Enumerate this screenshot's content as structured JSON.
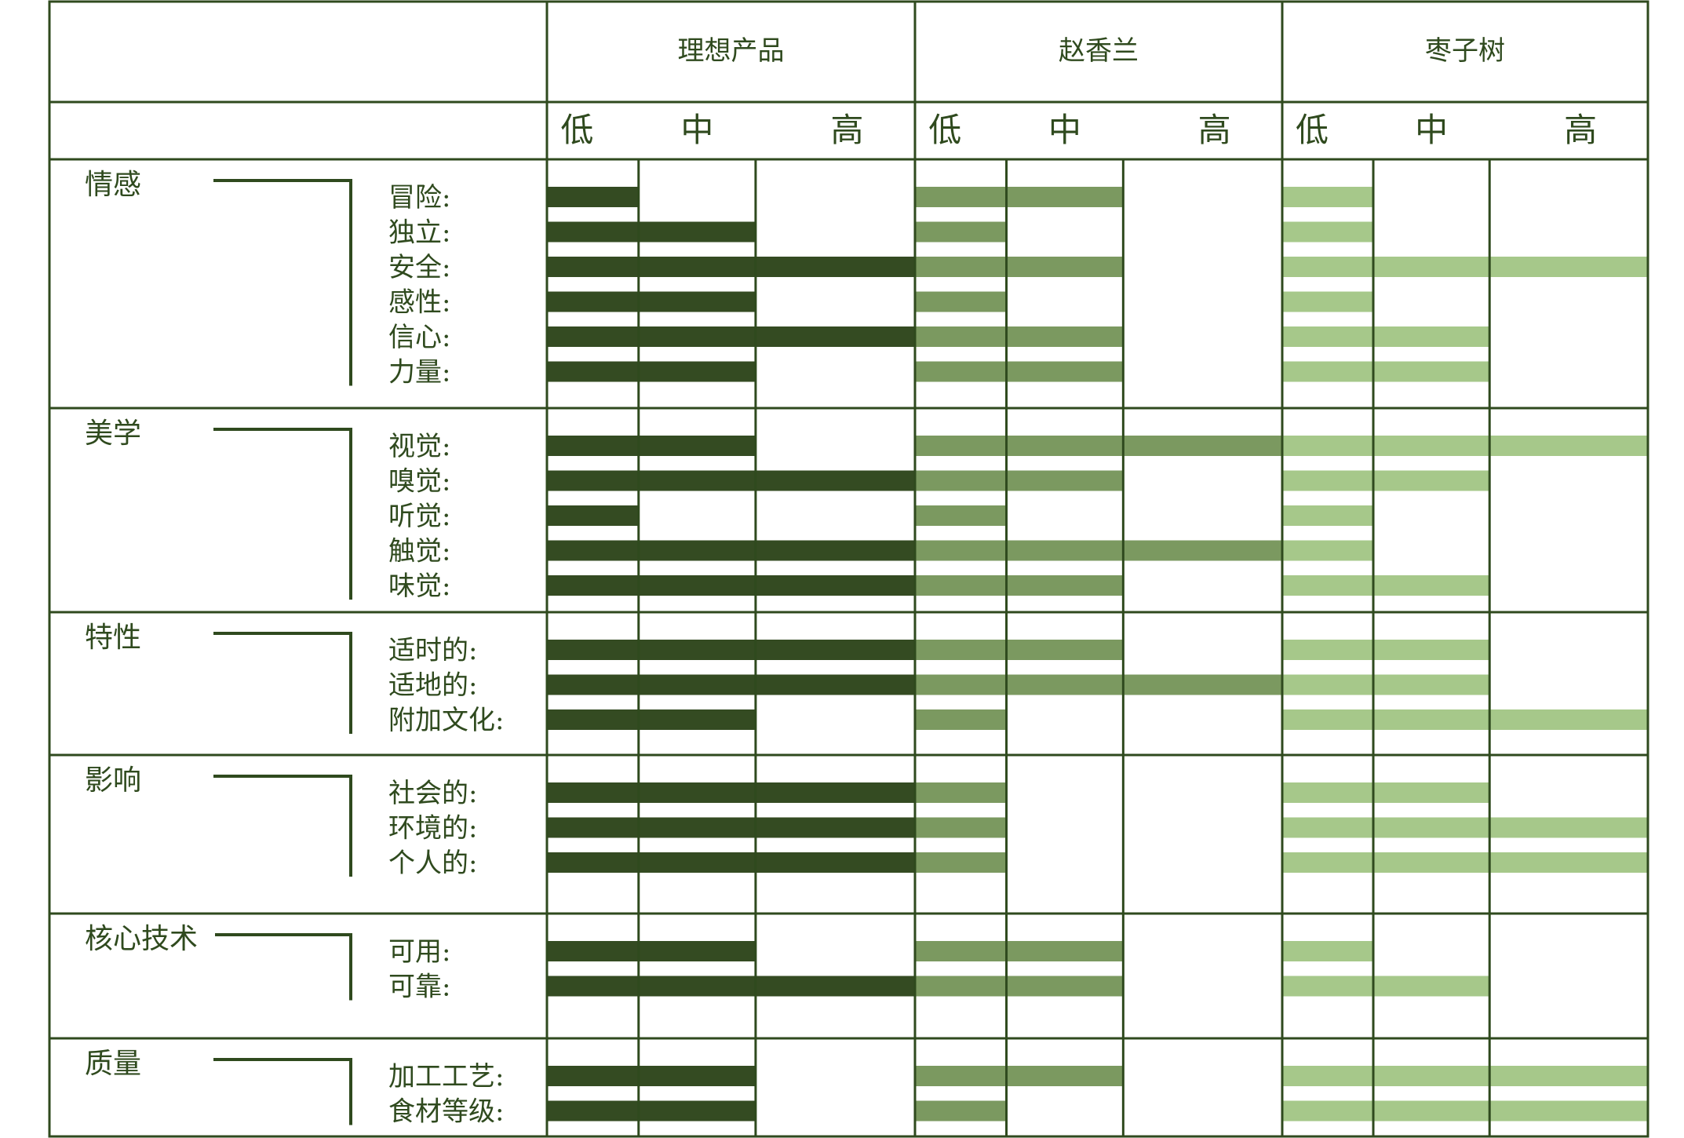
{
  "chart_data": {
    "type": "bar",
    "level_labels": [
      "低",
      "中",
      "高"
    ],
    "scale_max": 3,
    "series": [
      {
        "name": "理想产品",
        "color": "#344b22"
      },
      {
        "name": "赵香兰",
        "color": "#7b9960"
      },
      {
        "name": "枣子树",
        "color": "#a6c88a"
      }
    ],
    "groups": [
      {
        "label": "情感",
        "items": [
          {
            "label": "冒险:",
            "values": [
              1,
              2,
              1
            ]
          },
          {
            "label": "独立:",
            "values": [
              2,
              1,
              1
            ]
          },
          {
            "label": "安全:",
            "values": [
              3,
              2,
              3
            ]
          },
          {
            "label": "感性:",
            "values": [
              2,
              1,
              1
            ]
          },
          {
            "label": "信心:",
            "values": [
              3,
              2,
              2
            ]
          },
          {
            "label": "力量:",
            "values": [
              2,
              2,
              2
            ]
          }
        ]
      },
      {
        "label": "美学",
        "items": [
          {
            "label": "视觉:",
            "values": [
              2,
              3,
              3
            ]
          },
          {
            "label": "嗅觉:",
            "values": [
              3,
              2,
              2
            ]
          },
          {
            "label": "听觉:",
            "values": [
              1,
              1,
              1
            ]
          },
          {
            "label": "触觉:",
            "values": [
              3,
              3,
              1
            ]
          },
          {
            "label": "味觉:",
            "values": [
              3,
              2,
              2
            ]
          }
        ]
      },
      {
        "label": "特性",
        "items": [
          {
            "label": "适时的:",
            "values": [
              3,
              2,
              2
            ]
          },
          {
            "label": "适地的:",
            "values": [
              3,
              3,
              2
            ]
          },
          {
            "label": "附加文化:",
            "values": [
              2,
              1,
              3
            ]
          }
        ]
      },
      {
        "label": "影响",
        "items": [
          {
            "label": "社会的:",
            "values": [
              3,
              1,
              2
            ]
          },
          {
            "label": "环境的:",
            "values": [
              3,
              1,
              3
            ]
          },
          {
            "label": "个人的:",
            "values": [
              3,
              1,
              3
            ]
          }
        ]
      },
      {
        "label": "核心技术",
        "items": [
          {
            "label": "可用:",
            "values": [
              2,
              2,
              1
            ]
          },
          {
            "label": "可靠:",
            "values": [
              3,
              2,
              2
            ]
          }
        ]
      },
      {
        "label": "质量",
        "items": [
          {
            "label": "加工工艺:",
            "values": [
              2,
              2,
              3
            ]
          },
          {
            "label": "食材等级:",
            "values": [
              2,
              1,
              3
            ]
          }
        ]
      }
    ]
  }
}
